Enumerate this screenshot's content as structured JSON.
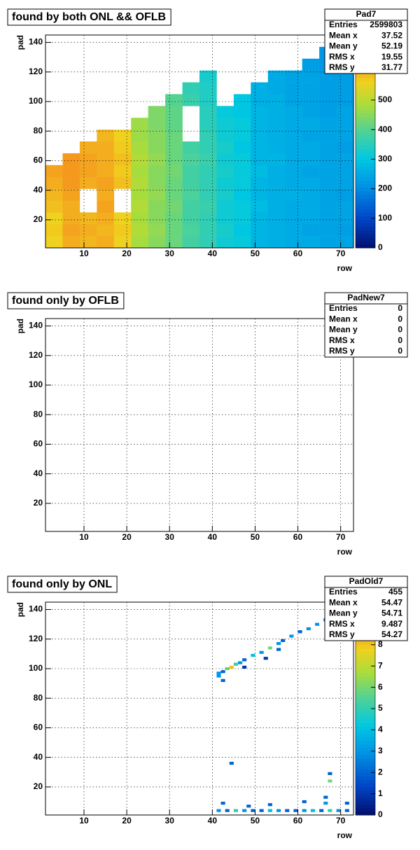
{
  "chart_data": [
    {
      "type": "heatmap",
      "title": "found by both ONL && OFLB",
      "xlabel": "row",
      "ylabel": "pad",
      "xlim": [
        1,
        73
      ],
      "ylim": [
        1,
        145
      ],
      "xticks": [
        10,
        20,
        30,
        40,
        50,
        60,
        70
      ],
      "yticks": [
        20,
        40,
        60,
        80,
        100,
        120,
        140
      ],
      "grid": true,
      "stats": {
        "title": "Pad7",
        "rows": [
          {
            "label": "Entries",
            "value": 2599803
          },
          {
            "label": "Mean x",
            "value": 37.52
          },
          {
            "label": "Mean y",
            "value": 52.19
          },
          {
            "label": "RMS x",
            "value": 19.55
          },
          {
            "label": "RMS y",
            "value": 31.77
          }
        ]
      },
      "zlim": [
        0,
        720
      ],
      "zticks": [
        0,
        100,
        200,
        300,
        400,
        500
      ],
      "xbins": [
        1,
        5,
        9,
        13,
        17,
        21,
        25,
        29,
        33,
        37,
        41,
        45,
        49,
        53,
        57,
        61,
        65,
        69,
        73
      ],
      "ybins": [
        1,
        9,
        17,
        25,
        33,
        41,
        49,
        57,
        65,
        73,
        81,
        89,
        97,
        105,
        113,
        121,
        129,
        137,
        145
      ],
      "z": [
        [
          560,
          600,
          590,
          600,
          560,
          480,
          450,
          420,
          380,
          360,
          320,
          310,
          270,
          260,
          250,
          250,
          240,
          240
        ],
        [
          570,
          610,
          600,
          590,
          570,
          490,
          460,
          420,
          390,
          360,
          330,
          300,
          270,
          260,
          250,
          240,
          240,
          230
        ],
        [
          560,
          600,
          590,
          600,
          560,
          480,
          450,
          420,
          380,
          360,
          320,
          310,
          270,
          260,
          250,
          250,
          240,
          240
        ],
        [
          580,
          600,
          null,
          610,
          null,
          490,
          450,
          430,
          380,
          370,
          320,
          310,
          280,
          260,
          250,
          250,
          240,
          240
        ],
        [
          590,
          610,
          null,
          600,
          null,
          480,
          460,
          420,
          390,
          360,
          330,
          300,
          270,
          260,
          260,
          250,
          240,
          230
        ],
        [
          600,
          620,
          600,
          610,
          580,
          490,
          450,
          420,
          380,
          360,
          320,
          310,
          270,
          260,
          250,
          250,
          240,
          240
        ],
        [
          610,
          620,
          610,
          600,
          570,
          480,
          450,
          430,
          380,
          360,
          330,
          310,
          280,
          260,
          250,
          240,
          240,
          240
        ],
        [
          null,
          620,
          610,
          600,
          580,
          490,
          460,
          420,
          390,
          370,
          320,
          310,
          270,
          270,
          250,
          250,
          240,
          240
        ],
        [
          null,
          null,
          600,
          600,
          570,
          480,
          450,
          420,
          380,
          360,
          330,
          300,
          270,
          260,
          250,
          250,
          240,
          230
        ],
        [
          null,
          null,
          null,
          590,
          560,
          470,
          450,
          420,
          null,
          360,
          320,
          310,
          270,
          260,
          250,
          240,
          240,
          240
        ],
        [
          null,
          null,
          null,
          null,
          null,
          470,
          440,
          410,
          null,
          350,
          320,
          310,
          270,
          260,
          250,
          250,
          240,
          240
        ],
        [
          null,
          null,
          null,
          null,
          null,
          null,
          440,
          410,
          null,
          350,
          310,
          300,
          270,
          260,
          250,
          240,
          230,
          240
        ],
        [
          null,
          null,
          null,
          null,
          null,
          null,
          null,
          400,
          370,
          340,
          null,
          300,
          260,
          260,
          240,
          240,
          230,
          230
        ],
        [
          null,
          null,
          null,
          null,
          null,
          null,
          null,
          null,
          360,
          340,
          null,
          null,
          260,
          250,
          240,
          240,
          230,
          230
        ],
        [
          null,
          null,
          null,
          null,
          null,
          null,
          null,
          null,
          null,
          330,
          null,
          null,
          null,
          250,
          240,
          240,
          230,
          230
        ],
        [
          null,
          null,
          null,
          null,
          null,
          null,
          null,
          null,
          null,
          null,
          null,
          null,
          null,
          null,
          null,
          230,
          220,
          220
        ],
        [
          null,
          null,
          null,
          null,
          null,
          null,
          null,
          null,
          null,
          null,
          null,
          null,
          null,
          null,
          null,
          null,
          220,
          210
        ],
        [
          null,
          null,
          null,
          null,
          null,
          null,
          null,
          null,
          null,
          null,
          null,
          null,
          null,
          null,
          null,
          null,
          null,
          210
        ]
      ]
    },
    {
      "type": "heatmap",
      "title": "found only by OFLB",
      "xlabel": "row",
      "ylabel": "pad",
      "xlim": [
        1,
        73
      ],
      "ylim": [
        1,
        145
      ],
      "xticks": [
        10,
        20,
        30,
        40,
        50,
        60,
        70
      ],
      "yticks": [
        20,
        40,
        60,
        80,
        100,
        120,
        140
      ],
      "grid": true,
      "stats": {
        "title": "PadNew7",
        "rows": [
          {
            "label": "Entries",
            "value": 0
          },
          {
            "label": "Mean x",
            "value": 0
          },
          {
            "label": "Mean y",
            "value": 0
          },
          {
            "label": "RMS x",
            "value": 0
          },
          {
            "label": "RMS y",
            "value": 0
          }
        ]
      }
    },
    {
      "type": "heatmap",
      "title": "found only by ONL",
      "xlabel": "row",
      "ylabel": "pad",
      "xlim": [
        1,
        73
      ],
      "ylim": [
        1,
        145
      ],
      "xticks": [
        10,
        20,
        30,
        40,
        50,
        60,
        70
      ],
      "yticks": [
        20,
        40,
        60,
        80,
        100,
        120,
        140
      ],
      "grid": true,
      "stats": {
        "title": "PadOld7",
        "rows": [
          {
            "label": "Entries",
            "value": 455
          },
          {
            "label": "Mean x",
            "value": 54.47
          },
          {
            "label": "Mean y",
            "value": 54.71
          },
          {
            "label": "RMS x",
            "value": 9.487
          },
          {
            "label": "RMS y",
            "value": 54.27
          }
        ]
      },
      "zlim": [
        0,
        10
      ],
      "zticks": [
        0,
        1,
        2,
        3,
        4,
        5,
        6,
        7,
        8
      ],
      "bin_width": [
        1,
        2
      ],
      "x": [
        41,
        42,
        43,
        44,
        45,
        46,
        47,
        49,
        51,
        53,
        55,
        56,
        58,
        60,
        62,
        64,
        66,
        68,
        70,
        71,
        42,
        47,
        52,
        55,
        41,
        41,
        43,
        45,
        47,
        49,
        51,
        53,
        55,
        57,
        59,
        61,
        63,
        65,
        67,
        69,
        71,
        42,
        48,
        53,
        61,
        66,
        71,
        44,
        67,
        67,
        66
      ],
      "y": [
        96,
        97,
        99,
        100,
        102,
        103,
        105,
        108,
        110,
        113,
        116,
        118,
        121,
        124,
        126,
        129,
        132,
        135,
        138,
        140,
        91,
        100,
        106,
        112,
        94,
        3,
        3,
        3,
        3,
        3,
        3,
        3,
        3,
        3,
        3,
        3,
        3,
        3,
        3,
        3,
        3,
        8,
        6,
        7,
        9,
        8,
        8,
        35,
        23,
        28,
        12
      ],
      "values": [
        3,
        2,
        6,
        8,
        5,
        3,
        2,
        4,
        3,
        6,
        3,
        2,
        3,
        2,
        3,
        3,
        2,
        3,
        2,
        2,
        2,
        1,
        1,
        2,
        3,
        3,
        2,
        5,
        3,
        2,
        2,
        4,
        3,
        2,
        2,
        3,
        4,
        2,
        5,
        3,
        2,
        2,
        2,
        2,
        2,
        3,
        2,
        2,
        6,
        2,
        2
      ]
    }
  ]
}
